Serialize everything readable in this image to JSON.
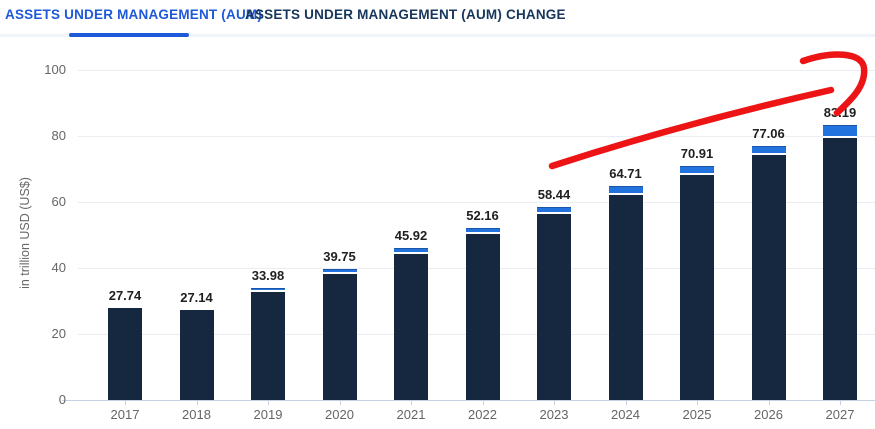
{
  "tabs": [
    {
      "label": "ASSETS UNDER MANAGEMENT (AUM)",
      "active": true
    },
    {
      "label": "ASSETS UNDER MANAGEMENT (AUM) CHANGE",
      "active": false
    }
  ],
  "chart_data": {
    "type": "bar",
    "categories": [
      "2017",
      "2018",
      "2019",
      "2020",
      "2021",
      "2022",
      "2023",
      "2024",
      "2025",
      "2026",
      "2027"
    ],
    "values": [
      27.74,
      27.14,
      33.98,
      39.75,
      45.92,
      52.16,
      58.44,
      64.71,
      70.91,
      77.06,
      83.19
    ],
    "cap_values": [
      0,
      0,
      0.4,
      0.7,
      0.7,
      1.0,
      1.3,
      1.6,
      1.8,
      1.8,
      2.8
    ],
    "value_labels": [
      "27.74",
      "27.14",
      "33.98",
      "39.75",
      "45.92",
      "52.16",
      "58.44",
      "64.71",
      "70.91",
      "77.06",
      "83.19"
    ],
    "title": "",
    "xlabel": "",
    "ylabel": "in trillion USD (US$)",
    "yticks": [
      0,
      20,
      40,
      60,
      80,
      100
    ],
    "ylim": [
      0,
      100
    ],
    "grid": true,
    "legend": false,
    "annotation": "hand-drawn red arrow rising from 2023 toward the 2027 bar"
  },
  "colors": {
    "tab_active": "#1d59d8",
    "tab_inactive": "#17365c",
    "tab_underline": "#1d59d8",
    "tab_track": "#f0f3f8",
    "bar_dark": "#16283f",
    "bar_cap": "#2373df",
    "bar_cap_edge": "#1b55a8",
    "grid_line": "#ececf3",
    "axis_line": "#c6d2e4",
    "text_muted": "#666666",
    "text_value": "#1f1f1f",
    "annotation_red": "#ec1414"
  }
}
